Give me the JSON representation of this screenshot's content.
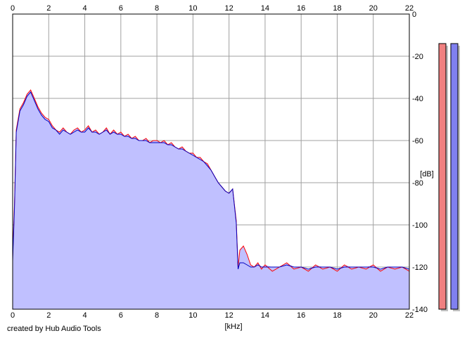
{
  "chart_data": {
    "type": "area",
    "xlabel": "[kHz]",
    "ylabel": "[dB]",
    "xlim": [
      0,
      22
    ],
    "ylim": [
      -140,
      0
    ],
    "x_ticks": [
      0,
      2,
      4,
      6,
      8,
      10,
      12,
      14,
      16,
      18,
      20,
      22
    ],
    "y_ticks": [
      0,
      -20,
      -40,
      -60,
      -80,
      -100,
      -120,
      -140
    ],
    "grid": true,
    "x_ticks_top": true,
    "x_ticks_bottom": true,
    "y_axis_side": "right",
    "colors": {
      "fill": "#c0c0ff",
      "left": "#ff0000",
      "right": "#0000c0",
      "meter_left": "#f08080",
      "meter_right": "#8080f0"
    },
    "x": [
      0.0,
      0.1,
      0.2,
      0.4,
      0.6,
      0.8,
      1.0,
      1.2,
      1.4,
      1.6,
      1.8,
      2.0,
      2.2,
      2.4,
      2.6,
      2.8,
      3.0,
      3.2,
      3.4,
      3.6,
      3.8,
      4.0,
      4.2,
      4.4,
      4.6,
      4.8,
      5.0,
      5.2,
      5.4,
      5.6,
      5.8,
      6.0,
      6.2,
      6.4,
      6.6,
      6.8,
      7.0,
      7.2,
      7.4,
      7.6,
      7.8,
      8.0,
      8.2,
      8.4,
      8.6,
      8.8,
      9.0,
      9.2,
      9.4,
      9.6,
      9.8,
      10.0,
      10.2,
      10.4,
      10.6,
      10.8,
      11.0,
      11.2,
      11.4,
      11.6,
      11.8,
      12.0,
      12.2,
      12.4,
      12.5,
      12.6,
      12.8,
      13.0,
      13.2,
      13.4,
      13.6,
      13.8,
      14.0,
      14.4,
      14.8,
      15.2,
      15.6,
      16.0,
      16.4,
      16.8,
      17.2,
      17.6,
      18.0,
      18.4,
      18.8,
      19.2,
      19.6,
      20.0,
      20.4,
      20.8,
      21.2,
      21.6,
      22.0
    ],
    "series": [
      {
        "name": "",
        "values": [
          -115,
          -90,
          -55,
          -45,
          -42,
          -38,
          -36,
          -40,
          -44,
          -47,
          -49,
          -50,
          -53,
          -55,
          -56,
          -54,
          -56,
          -57,
          -55,
          -54,
          -56,
          -55,
          -53,
          -56,
          -55,
          -57,
          -56,
          -54,
          -57,
          -55,
          -57,
          -56,
          -58,
          -57,
          -59,
          -58,
          -60,
          -60,
          -59,
          -61,
          -60,
          -60,
          -61,
          -60,
          -62,
          -61,
          -63,
          -64,
          -63,
          -65,
          -66,
          -66,
          -68,
          -68,
          -70,
          -71,
          -74,
          -77,
          -80,
          -82,
          -84,
          -85,
          -83,
          -98,
          -120,
          -112,
          -110,
          -114,
          -119,
          -120,
          -118,
          -121,
          -119,
          -122,
          -120,
          -118,
          -121,
          -120,
          -122,
          -119,
          -121,
          -120,
          -122,
          -119,
          -121,
          -120,
          -121,
          -119,
          -122,
          -120,
          -121,
          -120,
          -122
        ]
      },
      {
        "name": "",
        "values": [
          -117,
          -92,
          -56,
          -46,
          -43,
          -39,
          -37,
          -41,
          -45,
          -48,
          -50,
          -51,
          -54,
          -55,
          -57,
          -55,
          -56,
          -57,
          -56,
          -55,
          -56,
          -56,
          -54,
          -56,
          -56,
          -57,
          -56,
          -55,
          -57,
          -56,
          -57,
          -57,
          -58,
          -58,
          -59,
          -59,
          -60,
          -60,
          -60,
          -61,
          -61,
          -61,
          -61,
          -61,
          -62,
          -62,
          -63,
          -64,
          -64,
          -65,
          -66,
          -67,
          -68,
          -69,
          -70,
          -72,
          -74,
          -77,
          -80,
          -82,
          -84,
          -85,
          -83,
          -99,
          -121,
          -118,
          -118,
          -119,
          -120,
          -120,
          -119,
          -120,
          -120,
          -120,
          -120,
          -119,
          -120,
          -120,
          -121,
          -120,
          -120,
          -120,
          -121,
          -120,
          -120,
          -120,
          -120,
          -120,
          -121,
          -120,
          -120,
          -120,
          -121
        ]
      }
    ],
    "meters": {
      "left": -14,
      "right": -14
    }
  },
  "footer": {
    "credit": "created by Hub Audio Tools"
  }
}
